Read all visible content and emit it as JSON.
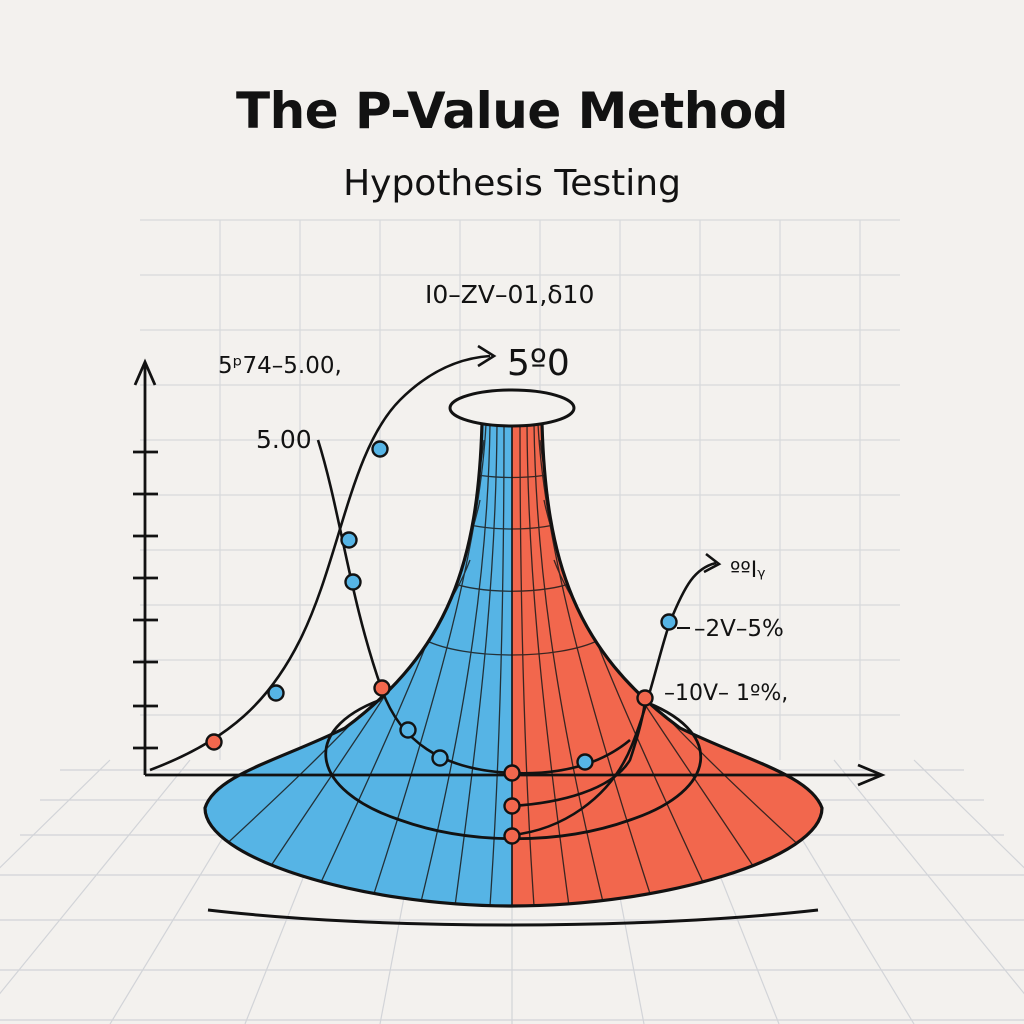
{
  "title": "The P-Value Method",
  "subtitle": "Hypothesis Testing",
  "labels": {
    "top_center": "I0–ZV–01,δ10",
    "peak": "5º0",
    "upper_left": "5ᵖ74–5.00,",
    "left_mid": "5.00",
    "right_top": "ººIᵧ",
    "right_mid": "–2V–5%",
    "right_low": "–10V– 1º%,"
  },
  "colors": {
    "left_region": "#56b4e5",
    "right_region": "#f2674d",
    "outline": "#121212",
    "grid": "#d7d9dc",
    "background": "#f3f1ee"
  }
}
